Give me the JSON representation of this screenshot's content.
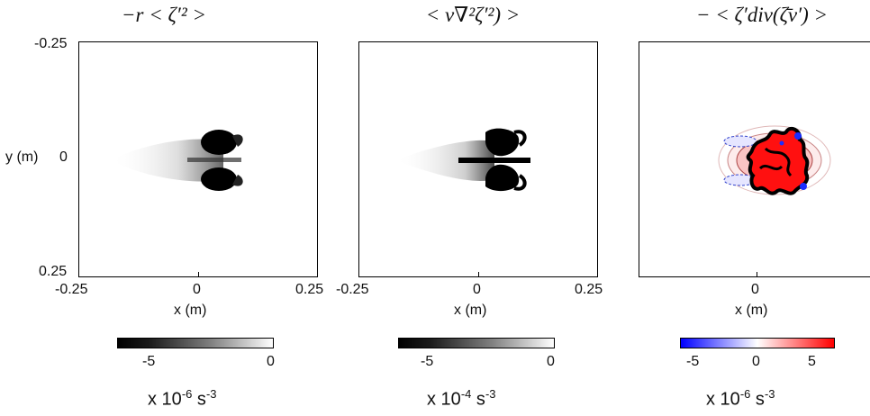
{
  "panels": [
    {
      "title": "−r < ζ′² >",
      "y_ticks": [
        "-0.25",
        "0",
        "0.25"
      ],
      "y_label": "y (m)",
      "x_ticks": [
        "-0.25",
        "0",
        "0.25"
      ],
      "x_label": "x (m)",
      "colorbar": {
        "ticks": [
          "-5",
          "0"
        ],
        "colormap": "gray"
      },
      "units": {
        "prefix": "x 10",
        "exp": "-6",
        "unit": " s",
        "unit_exp": "-3"
      }
    },
    {
      "title": "< ν∇²ζ′²) >",
      "x_ticks": [
        "-0.25",
        "0",
        "0.25"
      ],
      "x_label": "x (m)",
      "colorbar": {
        "ticks": [
          "-5",
          "0"
        ],
        "colormap": "gray"
      },
      "units": {
        "prefix": "x 10",
        "exp": "-4",
        "unit": " s",
        "unit_exp": "-3"
      }
    },
    {
      "title": "− < ζ′div(ζ̄v′) >",
      "x_ticks": [
        "0"
      ],
      "x_label": "x (m)",
      "colorbar": {
        "ticks": [
          "-5",
          "0",
          "5"
        ],
        "colormap": "blue-white-red"
      },
      "units": {
        "prefix": "x 10",
        "exp": "-6",
        "unit": " s",
        "unit_exp": "-3"
      }
    }
  ],
  "colors": {
    "negative": "#0000ff",
    "positive": "#ff0000",
    "dark": "#000000"
  }
}
